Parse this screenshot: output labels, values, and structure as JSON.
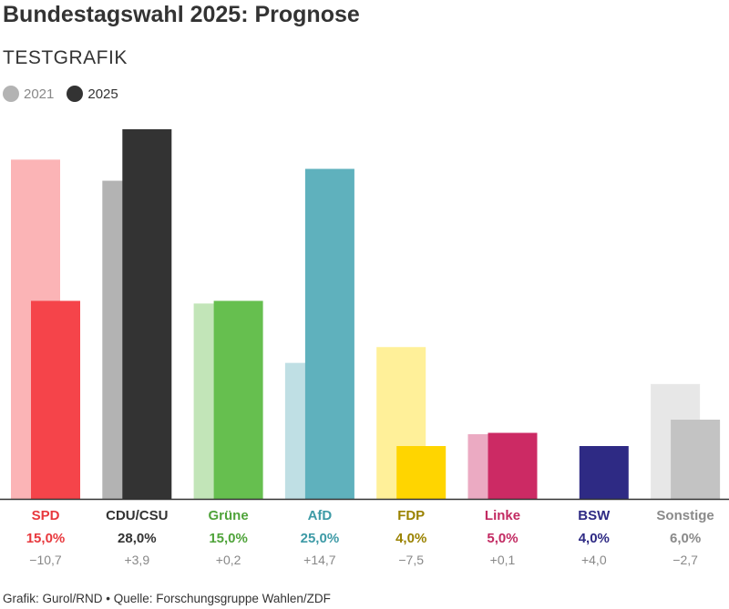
{
  "header": {
    "title": "Bundestagswahl 2025: Prognose",
    "subtitle": "TESTGRAFIK"
  },
  "legend": {
    "items": [
      {
        "label": "2021",
        "color": "#b3b3b3"
      },
      {
        "label": "2025",
        "color": "#333333"
      }
    ]
  },
  "footer": {
    "credit": "Grafik: Gurol/RND • Quelle: Forschungsgruppe Wahlen/ZDF"
  },
  "chart_data": {
    "type": "bar",
    "ylim": [
      0,
      30
    ],
    "grid": false,
    "legend_position": "top-left",
    "categories": [
      "SPD",
      "CDU/CSU",
      "Grüne",
      "AfD",
      "FDP",
      "Linke",
      "BSW",
      "Sonstige"
    ],
    "series": [
      {
        "name": "2021",
        "values": [
          25.7,
          24.1,
          14.8,
          10.3,
          11.5,
          4.9,
          0,
          8.7
        ]
      },
      {
        "name": "2025",
        "values": [
          15.0,
          28.0,
          15.0,
          25.0,
          4.0,
          5.0,
          4.0,
          6.0
        ]
      }
    ],
    "value_labels": [
      "15,0%",
      "28,0%",
      "15,0%",
      "25,0%",
      "4,0%",
      "5,0%",
      "4,0%",
      "6,0%"
    ],
    "change_labels": [
      "−10,7",
      "+3,9",
      "+0,2",
      "+14,7",
      "−7,5",
      "+0,1",
      "+4,0",
      "−2,7"
    ],
    "colors_2025": [
      "#f5444a",
      "#333333",
      "#66bf4f",
      "#5fb1bd",
      "#ffd500",
      "#cc2a64",
      "#2e2a84",
      "#c3c3c3"
    ],
    "colors_2021": [
      "#fbb4b6",
      "#b3b3b3",
      "#c2e5b8",
      "#bfdfe4",
      "#fff099",
      "#ebaac2",
      "#c0bfda",
      "#e7e7e7"
    ],
    "label_colors": [
      "#e8383d",
      "#333333",
      "#4fa33a",
      "#3d9aa6",
      "#9a8200",
      "#c22a62",
      "#2e2a84",
      "#8a8a8a"
    ]
  }
}
